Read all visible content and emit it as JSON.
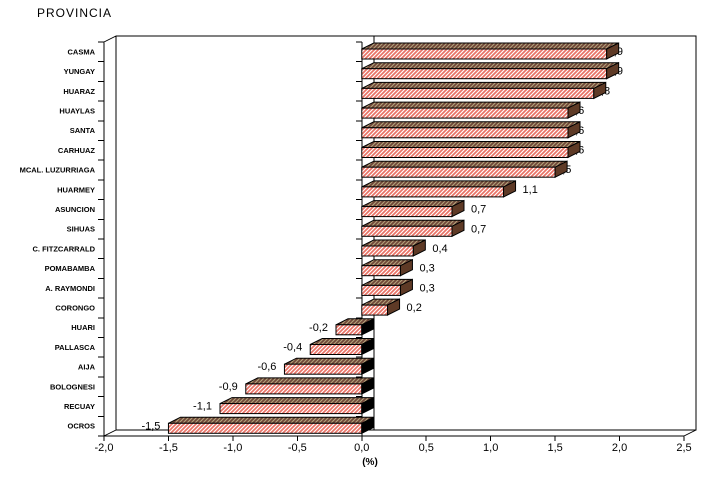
{
  "title": "PROVINCIA",
  "chart_data": {
    "type": "bar",
    "orientation": "horizontal",
    "title": "PROVINCIA",
    "xlabel": "(%)",
    "ylabel": "",
    "xlim": [
      -2.0,
      2.5
    ],
    "x_tick_step": 0.5,
    "x_tick_labels": [
      "-2,0",
      "-1,5",
      "-1,0",
      "-0,5",
      "0,0",
      "0,5",
      "1,0",
      "1,5",
      "2,0",
      "2,5"
    ],
    "grid": "off",
    "legend": "none",
    "categories": [
      "CASMA",
      "YUNGAY",
      "HUARAZ",
      "HUAYLAS",
      "SANTA",
      "CARHUAZ",
      "MCAL. LUZURRIAGA",
      "HUARMEY",
      "ASUNCION",
      "SIHUAS",
      "C. FITZCARRALD",
      "POMABAMBA",
      "A. RAYMONDI",
      "CORONGO",
      "HUARI",
      "PALLASCA",
      "AIJA",
      "BOLOGNESI",
      "RECUAY",
      "OCROS"
    ],
    "values": [
      1.9,
      1.9,
      1.8,
      1.6,
      1.6,
      1.6,
      1.5,
      1.1,
      0.7,
      0.7,
      0.4,
      0.3,
      0.3,
      0.2,
      -0.2,
      -0.4,
      -0.6,
      -0.9,
      -1.1,
      -1.5
    ],
    "value_labels": [
      "1,9",
      "1,9",
      "1,8",
      "1,6",
      "1,6",
      "1,6",
      "1,5",
      "1,1",
      "0,7",
      "0,7",
      "0,4",
      "0,3",
      "0,3",
      "0,2",
      "-0,2",
      "-0,4",
      "-0,6",
      "-0,9",
      "-1,1",
      "-1,5"
    ],
    "colors": {
      "bar_front_bg": "#ffffff",
      "bar_front_stripe": "#e97366",
      "bar_top_bg": "#b3a37a",
      "bar_top_stripe": "#6f4538",
      "bar_end_cap": "#5e3a26",
      "negative_end_face": "#000000",
      "axis": "#000000",
      "background": "#ffffff"
    }
  }
}
